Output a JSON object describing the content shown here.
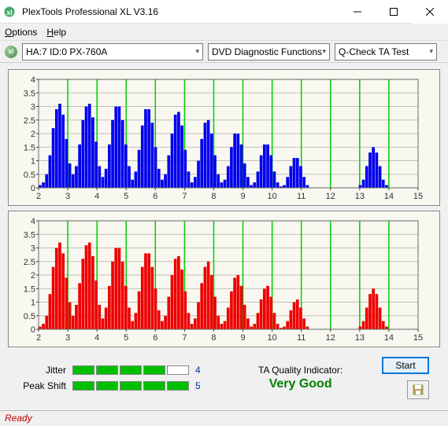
{
  "window": {
    "title": "PlexTools Professional XL V3.16"
  },
  "menu": {
    "options": "Options",
    "help": "Help"
  },
  "toolbar": {
    "device": "HA:7 ID:0  PX-760A",
    "func": "DVD Diagnostic Functions",
    "test": "Q-Check TA Test"
  },
  "chart": {
    "ymin": 0,
    "ymax": 4,
    "ystep": 0.5,
    "xmin": 2,
    "xmax": 15,
    "xstep": 1,
    "grid_color": "#c0c0b8",
    "green_line_color": "#00d000",
    "top_color": "#0000ee",
    "bottom_color": "#ee0000",
    "bg": "#f8f8f0",
    "values": [
      [
        0.1,
        0.2,
        0.5,
        1.2,
        2.2,
        2.9,
        3.1,
        2.7,
        1.8,
        0.9,
        0.5,
        0.8,
        1.6,
        2.5,
        3.0,
        3.1,
        2.6,
        1.7,
        0.8,
        0.4,
        0.7,
        1.6,
        2.5,
        3.0,
        3.0,
        2.5,
        1.6,
        0.8,
        0.3,
        0.6,
        1.4,
        2.3,
        2.9,
        2.9,
        2.4,
        1.5,
        0.7,
        0.3,
        0.5,
        1.2,
        2.0,
        2.7,
        2.8,
        2.3,
        1.4,
        0.6,
        0.2,
        0.4,
        1.0,
        1.8,
        2.4,
        2.5,
        2.0,
        1.2,
        0.5,
        0.2,
        0.3,
        0.8,
        1.5,
        2.0,
        2.0,
        1.6,
        0.9,
        0.4,
        0.1,
        0.2,
        0.6,
        1.2,
        1.6,
        1.6,
        1.2,
        0.6,
        0.2,
        0.05,
        0.1,
        0.4,
        0.8,
        1.1,
        1.1,
        0.8,
        0.4,
        0.1,
        0.0,
        0.0,
        0.0,
        0.0,
        0.0,
        0.0,
        0.0,
        0.0,
        0.0,
        0.0,
        0.0,
        0.0,
        0.0,
        0.0,
        0.0,
        0.1,
        0.3,
        0.8,
        1.3,
        1.5,
        1.3,
        0.8,
        0.3,
        0.1,
        0.0,
        0.0,
        0.0,
        0.0,
        0.0,
        0.0,
        0.0,
        0.0,
        0.0
      ],
      [
        0.1,
        0.2,
        0.5,
        1.3,
        2.3,
        3.0,
        3.2,
        2.8,
        1.9,
        1.0,
        0.5,
        0.9,
        1.7,
        2.6,
        3.1,
        3.2,
        2.7,
        1.8,
        0.9,
        0.4,
        0.8,
        1.6,
        2.5,
        3.0,
        3.0,
        2.5,
        1.6,
        0.8,
        0.3,
        0.6,
        1.4,
        2.3,
        2.8,
        2.8,
        2.3,
        1.5,
        0.7,
        0.3,
        0.5,
        1.2,
        2.0,
        2.6,
        2.7,
        2.2,
        1.4,
        0.6,
        0.2,
        0.4,
        1.0,
        1.7,
        2.3,
        2.5,
        2.0,
        1.2,
        0.5,
        0.2,
        0.3,
        0.8,
        1.4,
        1.9,
        2.0,
        1.6,
        0.9,
        0.4,
        0.1,
        0.2,
        0.6,
        1.1,
        1.5,
        1.6,
        1.2,
        0.6,
        0.2,
        0.05,
        0.1,
        0.3,
        0.7,
        1.0,
        1.1,
        0.8,
        0.4,
        0.1,
        0.0,
        0.0,
        0.0,
        0.0,
        0.0,
        0.0,
        0.0,
        0.0,
        0.0,
        0.0,
        0.0,
        0.0,
        0.0,
        0.0,
        0.0,
        0.1,
        0.3,
        0.8,
        1.3,
        1.5,
        1.3,
        0.8,
        0.3,
        0.1,
        0.0,
        0.0,
        0.0,
        0.0,
        0.0,
        0.0,
        0.0,
        0.0,
        0.0
      ]
    ]
  },
  "metrics": {
    "jitter": {
      "label": "Jitter",
      "filled": 4,
      "total": 5,
      "value": "4"
    },
    "peak": {
      "label": "Peak Shift",
      "filled": 5,
      "total": 5,
      "value": "5"
    }
  },
  "quality": {
    "label": "TA Quality Indicator:",
    "value": "Very Good"
  },
  "buttons": {
    "start": "Start"
  },
  "status": {
    "text": "Ready"
  }
}
